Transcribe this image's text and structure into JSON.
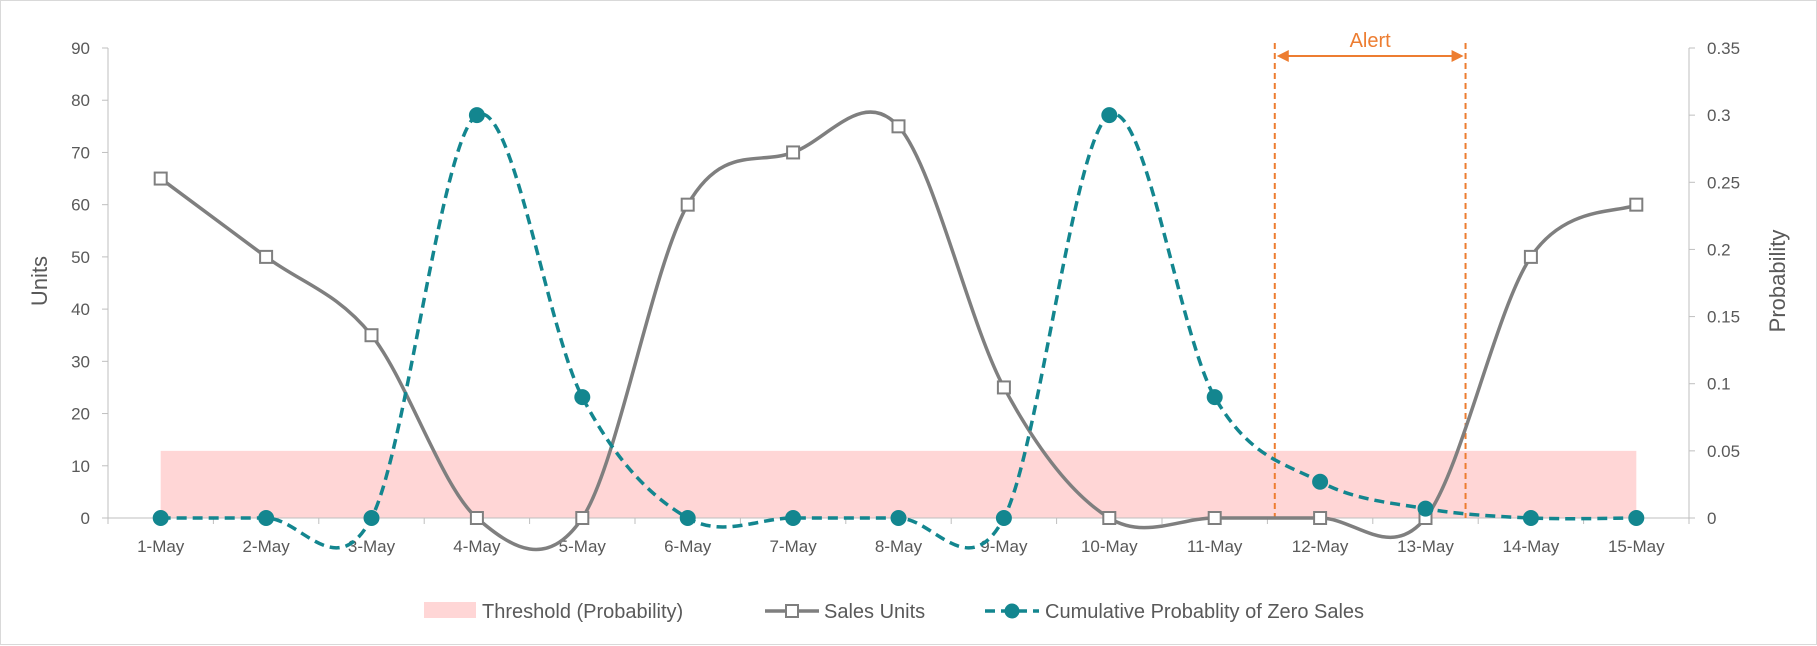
{
  "chart_data": {
    "type": "line",
    "title": "",
    "categories": [
      "1-May",
      "2-May",
      "3-May",
      "4-May",
      "5-May",
      "6-May",
      "7-May",
      "8-May",
      "9-May",
      "10-May",
      "11-May",
      "12-May",
      "13-May",
      "14-May",
      "15-May"
    ],
    "y_left": {
      "label": "Units",
      "ylim": [
        0,
        90
      ],
      "ticks": [
        0,
        10,
        20,
        30,
        40,
        50,
        60,
        70,
        80,
        90
      ]
    },
    "y_right": {
      "label": "Probability",
      "ylim": [
        0,
        0.35
      ],
      "ticks": [
        "0",
        "0.05",
        "0.1",
        "0.15",
        "0.2",
        "0.25",
        "0.3",
        "0.35"
      ]
    },
    "threshold": {
      "name": "Threshold (Probability)",
      "value": 0.05,
      "color": "#ffd6d6",
      "axis": "right"
    },
    "series": [
      {
        "name": "Sales Units",
        "axis": "left",
        "color": "#7f7f7f",
        "marker": "square",
        "values": [
          65,
          50,
          35,
          0,
          0,
          60,
          70,
          75,
          25,
          0,
          0,
          0,
          0,
          50,
          60
        ]
      },
      {
        "name": "Cumulative Probablity of Zero Sales",
        "axis": "right",
        "color": "#13868f",
        "marker": "circle",
        "dashed": true,
        "values": [
          0,
          0,
          0,
          0.3,
          0.09,
          0,
          0,
          0,
          0,
          0.3,
          0.09,
          0.027,
          0.007,
          0,
          0
        ]
      }
    ],
    "annotation": {
      "text": "Alert",
      "color": "#ed7d31",
      "from": "11-May",
      "to": "13-May",
      "start_offset": 0.57,
      "end_offset": 0.38
    },
    "grid": false,
    "legend_position": "bottom"
  }
}
